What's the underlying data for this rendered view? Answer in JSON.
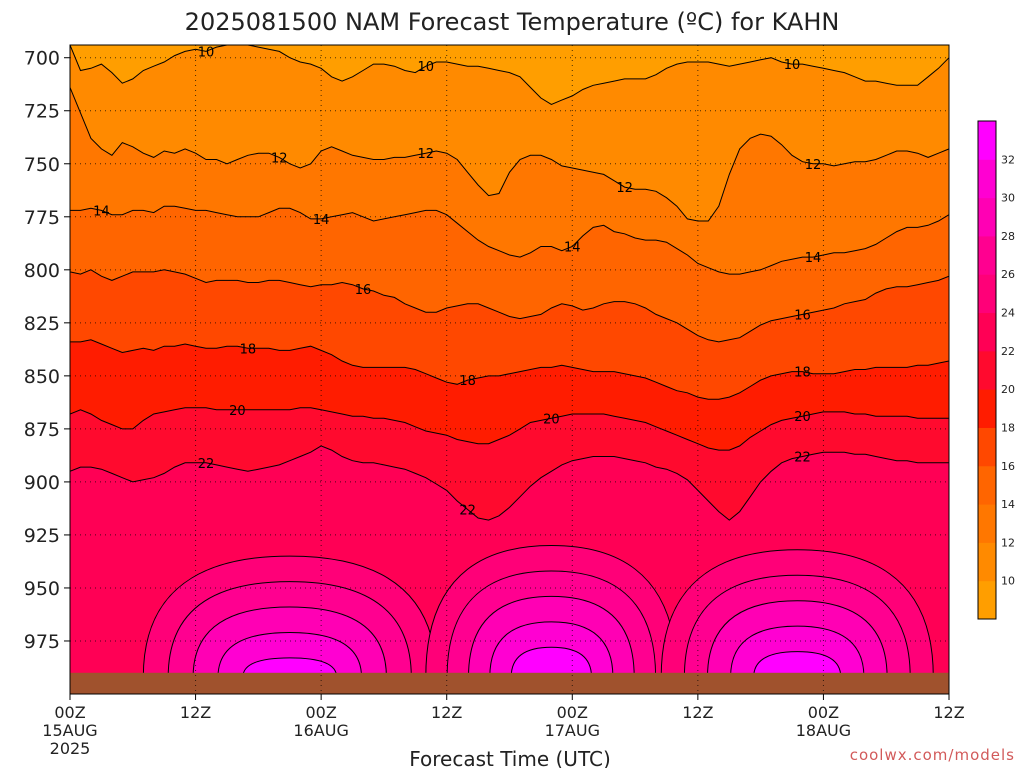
{
  "chart_data": {
    "type": "heatmap",
    "title": "2025081500 NAM Forecast Temperature (ºC) for KAHN",
    "xlabel": "Forecast Time (UTC)",
    "ylabel": "",
    "credit": "coolwx.com/models",
    "x_range_hours": [
      0,
      84
    ],
    "y_range_hPa": [
      1000,
      694
    ],
    "y_ticks": [
      700,
      725,
      750,
      775,
      800,
      825,
      850,
      875,
      900,
      925,
      950,
      975
    ],
    "y_tick_labels": [
      "700",
      "725",
      "750",
      "775",
      "800",
      "825",
      "850",
      "875",
      "900",
      "925",
      "950",
      "975"
    ],
    "x_ticks": [
      {
        "hour": 0,
        "label": "00Z",
        "date": "15AUG",
        "year": "2025"
      },
      {
        "hour": 12,
        "label": "12Z",
        "date": "",
        "year": ""
      },
      {
        "hour": 24,
        "label": "00Z",
        "date": "16AUG",
        "year": ""
      },
      {
        "hour": 36,
        "label": "12Z",
        "date": "",
        "year": ""
      },
      {
        "hour": 48,
        "label": "00Z",
        "date": "17AUG",
        "year": ""
      },
      {
        "hour": 60,
        "label": "12Z",
        "date": "",
        "year": ""
      },
      {
        "hour": 72,
        "label": "00Z",
        "date": "18AUG",
        "year": ""
      },
      {
        "hour": 84,
        "label": "12Z",
        "date": "",
        "year": ""
      }
    ],
    "grid": true,
    "contour_interval": 2,
    "color_scale": {
      "levels": [
        10,
        12,
        14,
        16,
        18,
        20,
        22,
        24,
        26,
        28,
        30,
        32
      ],
      "colors": [
        "#ff9e00",
        "#ff8a00",
        "#ff7700",
        "#ff6500",
        "#ff4800",
        "#ff1c00",
        "#ff0a2e",
        "#ff0055",
        "#ff0078",
        "#ff0090",
        "#ff00b4",
        "#ff00d2",
        "#ff00ff"
      ]
    },
    "surface_pressure_hPa": 990,
    "surface_color": "#a0522d",
    "contours": [
      {
        "level": 10,
        "pressure_hPa": [
          694,
          706,
          705,
          703,
          707,
          712,
          710,
          706,
          704,
          702,
          699,
          697,
          696,
          697,
          695,
          694,
          694,
          694,
          695,
          696,
          697,
          700,
          702,
          703,
          705,
          709,
          711,
          709,
          706,
          703,
          703,
          704,
          706,
          707,
          704,
          702,
          702,
          703,
          704,
          704,
          705,
          706,
          707,
          709,
          714,
          719,
          722,
          720,
          718,
          715,
          713,
          712,
          711,
          710,
          710,
          710,
          708,
          705,
          703,
          702,
          702,
          702,
          703,
          704,
          703,
          702,
          701,
          700,
          702,
          703,
          703,
          704,
          705,
          706,
          707,
          709,
          711,
          711,
          712,
          713,
          713,
          713,
          709,
          705,
          700
        ],
        "labels": [
          {
            "hour": 13,
            "text": "10"
          },
          {
            "hour": 34,
            "text": "10"
          },
          {
            "hour": 69,
            "text": "10"
          }
        ]
      },
      {
        "level": 12,
        "pressure_hPa": [
          714,
          726,
          738,
          743,
          746,
          740,
          742,
          745,
          747,
          744,
          745,
          743,
          745,
          748,
          748,
          750,
          748,
          746,
          745,
          745,
          747,
          750,
          752,
          750,
          744,
          742,
          744,
          746,
          747,
          748,
          748,
          747,
          747,
          746,
          745,
          744,
          745,
          748,
          754,
          760,
          765,
          764,
          754,
          748,
          746,
          746,
          748,
          751,
          752,
          753,
          754,
          755,
          758,
          761,
          762,
          762,
          763,
          766,
          770,
          776,
          777,
          777,
          770,
          755,
          743,
          738,
          736,
          737,
          741,
          746,
          749,
          750,
          750,
          751,
          750,
          749,
          749,
          748,
          746,
          744,
          744,
          745,
          747,
          745,
          743
        ],
        "labels": [
          {
            "hour": 20,
            "text": "12"
          },
          {
            "hour": 34,
            "text": "12"
          },
          {
            "hour": 53,
            "text": "12"
          },
          {
            "hour": 71,
            "text": "12"
          }
        ]
      },
      {
        "level": 14,
        "pressure_hPa": [
          772,
          772,
          771,
          772,
          774,
          774,
          772,
          772,
          773,
          770,
          770,
          771,
          772,
          772,
          773,
          774,
          775,
          775,
          775,
          773,
          771,
          771,
          773,
          776,
          776,
          775,
          774,
          773,
          775,
          777,
          776,
          775,
          774,
          773,
          772,
          772,
          774,
          778,
          782,
          786,
          789,
          791,
          793,
          794,
          792,
          789,
          789,
          791,
          789,
          784,
          780,
          779,
          782,
          783,
          785,
          786,
          786,
          787,
          790,
          793,
          797,
          799,
          801,
          802,
          802,
          801,
          800,
          798,
          796,
          795,
          794,
          794,
          793,
          792,
          792,
          791,
          790,
          788,
          785,
          782,
          780,
          780,
          779,
          777,
          774
        ],
        "labels": [
          {
            "hour": 3,
            "text": "14"
          },
          {
            "hour": 24,
            "text": "14"
          },
          {
            "hour": 48,
            "text": "14"
          },
          {
            "hour": 71,
            "text": "14"
          }
        ]
      },
      {
        "level": 16,
        "pressure_hPa": [
          801,
          802,
          800,
          803,
          805,
          803,
          801,
          801,
          801,
          800,
          801,
          802,
          804,
          806,
          805,
          805,
          805,
          806,
          806,
          805,
          805,
          806,
          807,
          808,
          807,
          807,
          806,
          807,
          809,
          810,
          812,
          813,
          816,
          818,
          820,
          820,
          818,
          817,
          816,
          816,
          818,
          820,
          822,
          823,
          822,
          821,
          818,
          816,
          817,
          819,
          818,
          816,
          815,
          815,
          816,
          818,
          821,
          823,
          825,
          828,
          831,
          833,
          834,
          833,
          832,
          829,
          826,
          824,
          823,
          822,
          821,
          820,
          819,
          818,
          816,
          815,
          814,
          811,
          809,
          808,
          808,
          807,
          806,
          805,
          803
        ],
        "labels": [
          {
            "hour": 28,
            "text": "16"
          },
          {
            "hour": 70,
            "text": "16"
          }
        ]
      },
      {
        "level": 18,
        "pressure_hPa": [
          834,
          834,
          833,
          835,
          837,
          839,
          838,
          837,
          838,
          836,
          836,
          835,
          836,
          837,
          837,
          836,
          836,
          837,
          837,
          837,
          838,
          838,
          837,
          836,
          838,
          840,
          843,
          845,
          846,
          846,
          846,
          846,
          846,
          847,
          849,
          851,
          853,
          854,
          852,
          851,
          850,
          850,
          849,
          848,
          847,
          846,
          846,
          845,
          846,
          847,
          848,
          848,
          848,
          849,
          850,
          851,
          853,
          855,
          857,
          858,
          860,
          861,
          861,
          860,
          858,
          855,
          852,
          850,
          849,
          848,
          848,
          849,
          849,
          849,
          848,
          847,
          847,
          846,
          846,
          846,
          846,
          845,
          845,
          844,
          843
        ],
        "labels": [
          {
            "hour": 17,
            "text": "18"
          },
          {
            "hour": 38,
            "text": "18"
          },
          {
            "hour": 70,
            "text": "18"
          }
        ]
      },
      {
        "level": 20,
        "pressure_hPa": [
          868,
          866,
          868,
          871,
          873,
          875,
          875,
          871,
          868,
          867,
          866,
          865,
          865,
          865,
          866,
          866,
          866,
          866,
          866,
          866,
          866,
          866,
          865,
          865,
          866,
          867,
          868,
          869,
          869,
          870,
          870,
          871,
          872,
          874,
          876,
          877,
          878,
          880,
          881,
          882,
          882,
          880,
          878,
          875,
          872,
          871,
          870,
          869,
          868,
          868,
          868,
          868,
          869,
          870,
          871,
          872,
          874,
          876,
          878,
          880,
          882,
          884,
          885,
          885,
          883,
          879,
          876,
          873,
          871,
          870,
          869,
          868,
          867,
          867,
          867,
          868,
          868,
          869,
          869,
          869,
          869,
          870,
          870,
          870,
          870
        ],
        "labels": [
          {
            "hour": 16,
            "text": "20"
          },
          {
            "hour": 46,
            "text": "20"
          },
          {
            "hour": 70,
            "text": "20"
          }
        ]
      },
      {
        "level": 22,
        "pressure_hPa": [
          895,
          893,
          893,
          894,
          896,
          898,
          900,
          899,
          898,
          896,
          893,
          891,
          891,
          891,
          892,
          893,
          894,
          895,
          894,
          893,
          892,
          890,
          888,
          886,
          883,
          885,
          888,
          890,
          891,
          891,
          892,
          893,
          894,
          896,
          898,
          901,
          904,
          909,
          913,
          917,
          918,
          916,
          912,
          907,
          902,
          898,
          895,
          892,
          890,
          889,
          888,
          888,
          888,
          889,
          890,
          891,
          893,
          894,
          896,
          899,
          904,
          909,
          914,
          918,
          914,
          907,
          900,
          895,
          891,
          889,
          888,
          887,
          886,
          886,
          886,
          887,
          887,
          888,
          889,
          890,
          890,
          891,
          891,
          891,
          891
        ],
        "labels": [
          {
            "hour": 13,
            "text": "22"
          },
          {
            "hour": 38,
            "text": "22"
          },
          {
            "hour": 70,
            "text": "22"
          }
        ]
      }
    ]
  }
}
